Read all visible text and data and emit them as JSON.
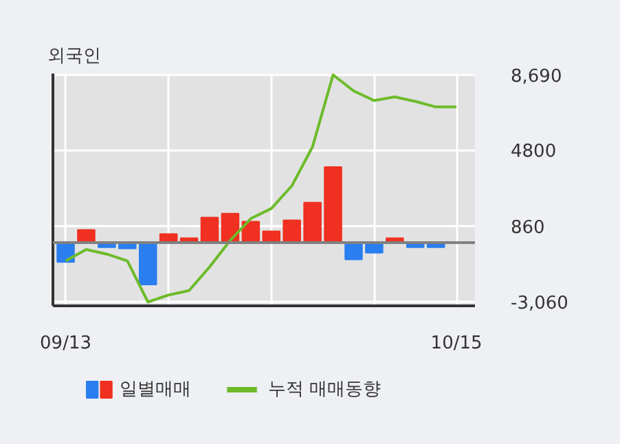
{
  "chart_data": {
    "type": "bar",
    "title": "외국인",
    "categories": [
      "09/13",
      null,
      null,
      null,
      null,
      null,
      null,
      null,
      null,
      null,
      null,
      null,
      null,
      null,
      null,
      null,
      null,
      null,
      null,
      "10/15"
    ],
    "series": [
      {
        "name": "일별매매",
        "values": [
          -1000,
          660,
          -240,
          -300,
          -2170,
          450,
          240,
          1300,
          1510,
          1090,
          590,
          1160,
          2080,
          3920,
          -870,
          -520,
          240,
          -240,
          -240,
          null
        ],
        "colors": [
          "#2a7ef0",
          "#f03020",
          "#2a7ef0",
          "#2a7ef0",
          "#2a7ef0",
          "#f03020",
          "#f03020",
          "#f03020",
          "#f03020",
          "#f03020",
          "#f03020",
          "#f03020",
          "#f03020",
          "#f03020",
          "#2a7ef0",
          "#2a7ef0",
          "#f03020",
          "#2a7ef0",
          "#2a7ef0",
          "#2a7ef0"
        ]
      },
      {
        "name": "누적 매매동향",
        "type": "line",
        "color": "#6dbb2a",
        "values": [
          -940,
          -350,
          -590,
          -940,
          -3070,
          -2710,
          -2480,
          -1250,
          120,
          1250,
          1770,
          2950,
          4960,
          8690,
          7860,
          7360,
          7550,
          7320,
          7030,
          7030
        ]
      }
    ],
    "ylim": [
      -3270,
      8760
    ],
    "yticks": [
      {
        "value": 8690,
        "label": "8,690"
      },
      4800,
      860,
      {
        "value": -3060,
        "label": "-3,060"
      }
    ],
    "ref_lines": [
      {
        "axis": "y",
        "value": 0,
        "color": "#808080"
      }
    ],
    "grid": true,
    "legend": "bottom"
  }
}
